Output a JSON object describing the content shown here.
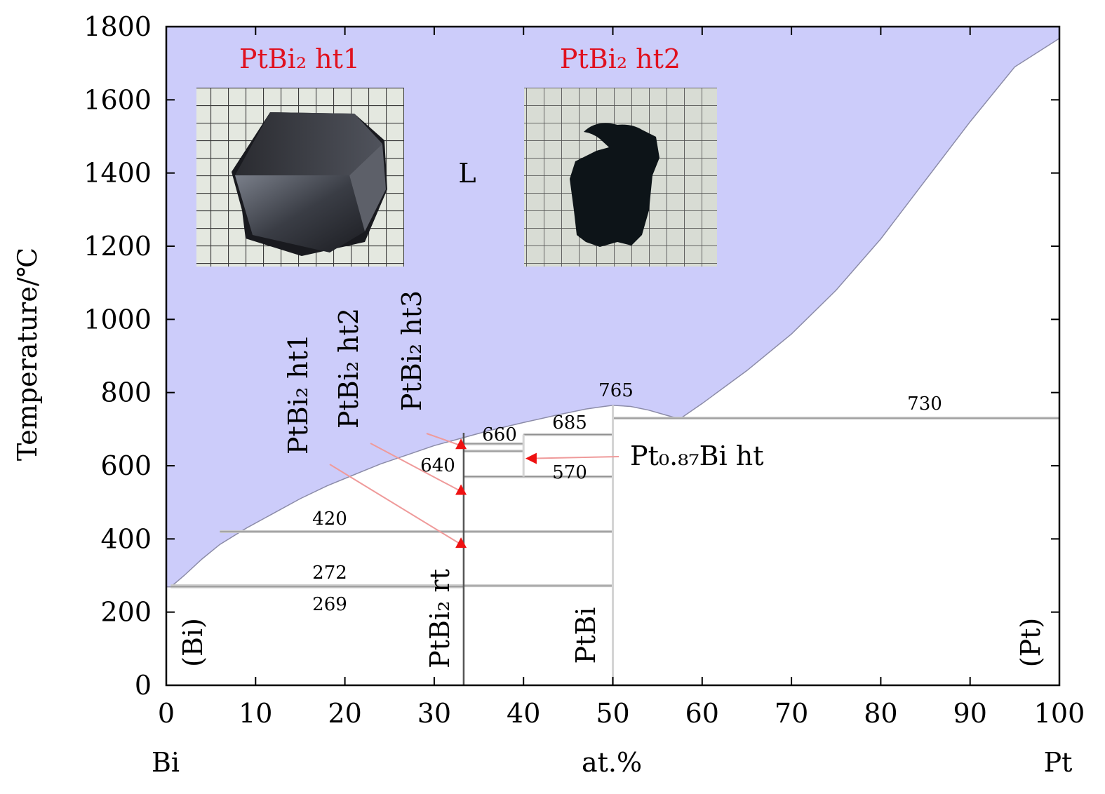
{
  "chart_data": {
    "type": "phase-diagram",
    "ylabel": "Temperature/℃",
    "xlabel": "at.%",
    "x_left_label": "Bi",
    "x_right_label": "Pt",
    "xlim": [
      0,
      100
    ],
    "ylim": [
      0,
      1800
    ],
    "xticks": [
      0,
      10,
      20,
      30,
      40,
      50,
      60,
      70,
      80,
      90,
      100
    ],
    "yticks": [
      0,
      200,
      400,
      600,
      800,
      1000,
      1200,
      1400,
      1600,
      1800
    ],
    "liquid_label": "L",
    "liquid_color": "#ccccfa",
    "liquidus": [
      [
        0.5,
        269
      ],
      [
        2,
        300
      ],
      [
        4,
        345
      ],
      [
        6,
        385
      ],
      [
        9,
        430
      ],
      [
        12,
        470
      ],
      [
        15,
        510
      ],
      [
        18,
        545
      ],
      [
        21,
        575
      ],
      [
        24,
        605
      ],
      [
        27,
        630
      ],
      [
        30,
        655
      ],
      [
        33,
        675
      ],
      [
        36,
        695
      ],
      [
        40,
        718
      ],
      [
        44,
        740
      ],
      [
        47,
        755
      ],
      [
        49,
        762
      ],
      [
        50,
        765
      ],
      [
        52,
        762
      ],
      [
        54,
        752
      ],
      [
        56,
        738
      ],
      [
        57.5,
        728
      ],
      [
        60,
        770
      ],
      [
        65,
        860
      ],
      [
        70,
        960
      ],
      [
        75,
        1080
      ],
      [
        80,
        1220
      ],
      [
        85,
        1380
      ],
      [
        90,
        1540
      ],
      [
        95,
        1690
      ],
      [
        100,
        1768
      ]
    ],
    "isotherms": [
      {
        "label": "272",
        "t": 272,
        "x": [
          0.5,
          50
        ]
      },
      {
        "label": "269",
        "t": 269,
        "x": [
          0.5,
          33.3
        ]
      },
      {
        "label": "420",
        "t": 420,
        "x": [
          6,
          50
        ]
      },
      {
        "label": "640",
        "t": 640,
        "x": [
          33.3,
          40
        ]
      },
      {
        "label": "660",
        "t": 660,
        "x": [
          33.3,
          40
        ]
      },
      {
        "label": "570",
        "t": 570,
        "x": [
          33.3,
          50
        ]
      },
      {
        "label": "685",
        "t": 685,
        "x": [
          40,
          50
        ]
      },
      {
        "label": "730",
        "t": 730,
        "x": [
          50,
          100
        ]
      },
      {
        "label": "765",
        "t": 765,
        "x": [
          50,
          50
        ]
      }
    ],
    "compound_lines": [
      {
        "label": "PtBi₂ rt",
        "x": 33.3,
        "t": [
          0,
          690
        ]
      },
      {
        "label": "PtBi",
        "x": 50,
        "t": [
          0,
          765
        ]
      },
      {
        "label": "Pt₀.₈₇Bi ht",
        "x": 40,
        "t": [
          570,
          685
        ]
      }
    ],
    "phase_labels": [
      {
        "label": "(Bi)"
      },
      {
        "label": "(Pt)"
      },
      {
        "label": "PtBi₂ rt"
      },
      {
        "label": "PtBi"
      }
    ],
    "annotations": [
      {
        "label": "PtBi₂ ht1",
        "point": [
          33,
          385
        ]
      },
      {
        "label": "PtBi₂ ht2",
        "point": [
          33,
          530
        ]
      },
      {
        "label": "PtBi₂ ht3",
        "point": [
          33,
          655
        ]
      },
      {
        "label": "Pt₀.₈₇Bi ht",
        "point": [
          41,
          620
        ]
      }
    ],
    "insets": [
      {
        "label": "PtBi₂ ht1"
      },
      {
        "label": "PtBi₂ ht2"
      }
    ],
    "marker_color": "#ee1111"
  }
}
